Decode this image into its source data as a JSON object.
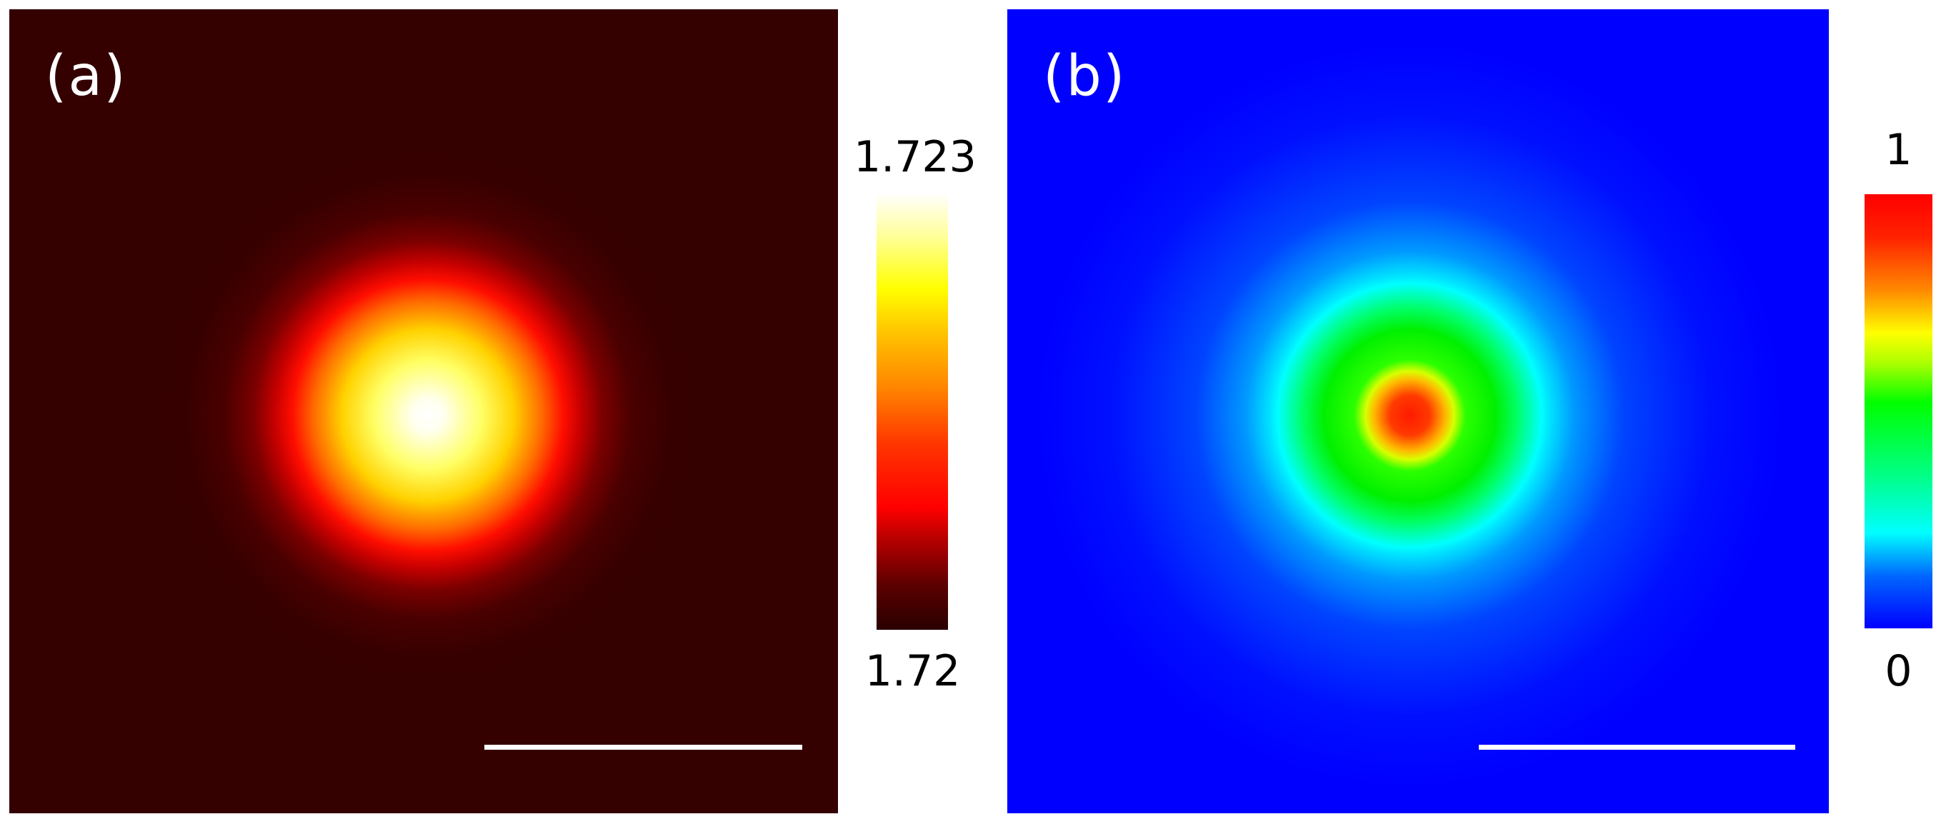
{
  "chart_data": [
    {
      "type": "heatmap",
      "panel_label": "(a)",
      "colormap": "hot",
      "colorbar": {
        "max_label": "1.723",
        "min_label": "1.72",
        "vmin": 1.72,
        "vmax": 1.723
      },
      "center_value": 1.723,
      "background_value": 1.72,
      "scale_bar": true
    },
    {
      "type": "heatmap",
      "panel_label": "(b)",
      "colormap": "jet",
      "colorbar": {
        "max_label": "1",
        "min_label": "0",
        "vmin": 0,
        "vmax": 1
      },
      "center_value": 1,
      "background_value": 0,
      "scale_bar": true
    }
  ],
  "colors": {
    "background_a": "#340000",
    "background_b": "#0000ff",
    "scale_bar": "#ffffff"
  }
}
